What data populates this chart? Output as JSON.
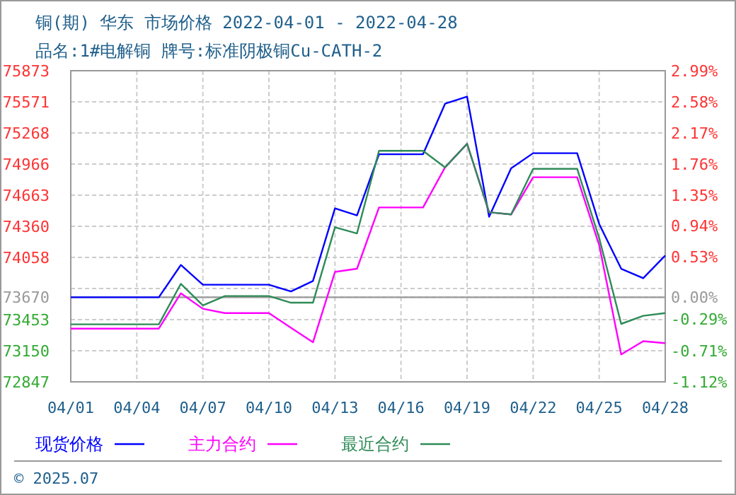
{
  "chart_data": {
    "type": "line",
    "title": "铜(期) 华东 市场价格 2022-04-01 - 2022-04-28",
    "subtitle": "品名:1#电解铜 牌号:标准阴极铜Cu-CATH-2",
    "x": [
      "2022-04-01",
      "2022-04-05",
      "2022-04-06",
      "2022-04-07",
      "2022-04-08",
      "2022-04-10",
      "2022-04-11",
      "2022-04-12",
      "2022-04-13",
      "2022-04-14",
      "2022-04-15",
      "2022-04-17",
      "2022-04-18",
      "2022-04-19",
      "2022-04-20",
      "2022-04-21",
      "2022-04-22",
      "2022-04-24",
      "2022-04-25",
      "2022-04-26",
      "2022-04-27",
      "2022-04-28"
    ],
    "series": [
      {
        "name": "现货价格",
        "color": "#0000ff",
        "values": [
          73670,
          73670,
          73984,
          73792,
          73792,
          73792,
          73727,
          73828,
          74534,
          74466,
          75061,
          75061,
          75552,
          75621,
          74452,
          74924,
          75071,
          75071,
          74383,
          73947,
          73855,
          74075
        ]
      },
      {
        "name": "主力合约",
        "color": "#ff00ff",
        "values": [
          73365,
          73365,
          73709,
          73558,
          73516,
          73516,
          73374,
          73232,
          73916,
          73947,
          74543,
          74543,
          74933,
          75162,
          74497,
          74475,
          74837,
          74837,
          74177,
          73113,
          73242,
          73223
        ]
      },
      {
        "name": "最近合约",
        "color": "#2e8b57",
        "values": [
          73407,
          73407,
          73800,
          73590,
          73682,
          73682,
          73617,
          73617,
          74351,
          74291,
          75094,
          75094,
          74933,
          75162,
          74497,
          74475,
          74919,
          74919,
          74246,
          73411,
          73489,
          73516
        ]
      }
    ],
    "xlim": [
      "2022-04-01",
      "2022-04-28"
    ],
    "xticks": [
      {
        "value": "2022-04-01",
        "label": "04/01"
      },
      {
        "value": "2022-04-04",
        "label": "04/04"
      },
      {
        "value": "2022-04-07",
        "label": "04/07"
      },
      {
        "value": "2022-04-10",
        "label": "04/10"
      },
      {
        "value": "2022-04-13",
        "label": "04/13"
      },
      {
        "value": "2022-04-16",
        "label": "04/16"
      },
      {
        "value": "2022-04-19",
        "label": "04/19"
      },
      {
        "value": "2022-04-22",
        "label": "04/22"
      },
      {
        "value": "2022-04-25",
        "label": "04/25"
      },
      {
        "value": "2022-04-28",
        "label": "04/28"
      }
    ],
    "ylim": [
      72847,
      75873
    ],
    "yticks": [
      72847,
      73150,
      73453,
      73670,
      {
        "value": 73755,
        "label": null
      },
      74058,
      74360,
      74663,
      74966,
      75268,
      75571,
      75873
    ],
    "y2lim": [
      -1.12,
      2.99
    ],
    "y2ticks": [
      {
        "value": -1.12,
        "label": "-1.12%"
      },
      {
        "value": -0.71,
        "label": "-0.71%"
      },
      {
        "value": -0.29,
        "label": "-0.29%"
      },
      {
        "value": 0,
        "label": "0.00%"
      },
      {
        "value": 0.53,
        "label": "0.53%"
      },
      {
        "value": 0.94,
        "label": "0.94%"
      },
      {
        "value": 1.35,
        "label": "1.35%"
      },
      {
        "value": 1.76,
        "label": "1.76%"
      },
      {
        "value": 2.17,
        "label": "2.17%"
      },
      {
        "value": 2.58,
        "label": "2.58%"
      },
      {
        "value": 2.99,
        "label": "2.99%"
      }
    ],
    "ref_lines": [
      {
        "axis": "y",
        "value": 73670,
        "color": "#999999"
      }
    ],
    "grid": true,
    "legend": "bottom",
    "marker": "none",
    "line_style": "solid",
    "annotations": [
      "© 2025.07"
    ]
  }
}
